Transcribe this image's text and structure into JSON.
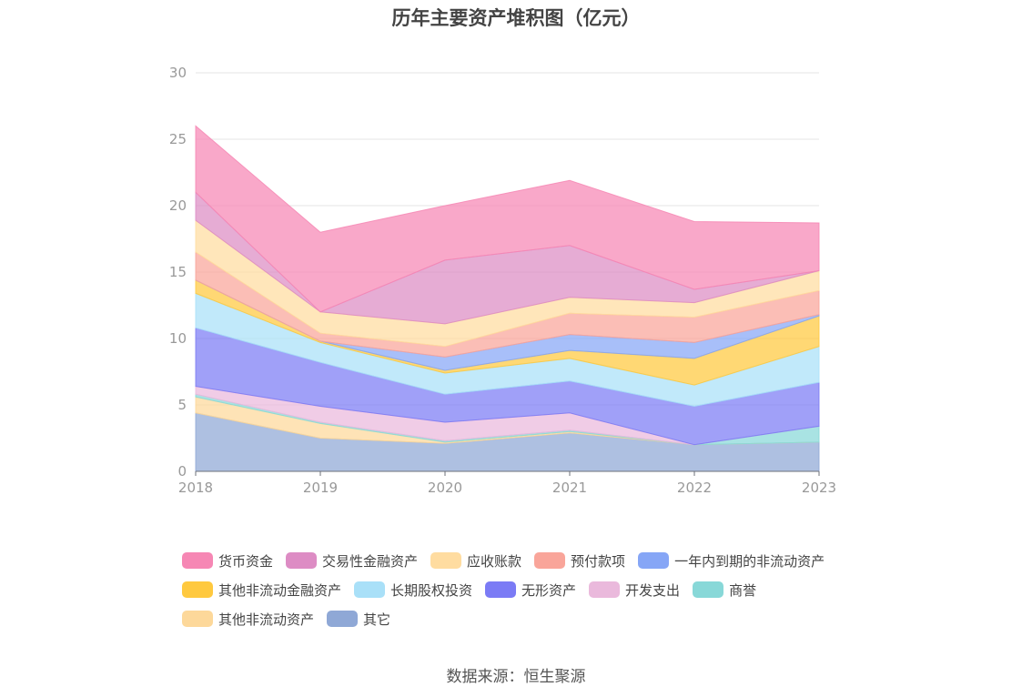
{
  "chart_data": {
    "type": "area",
    "title": "历年主要资产堆积图（亿元）",
    "x": [
      "2018",
      "2019",
      "2020",
      "2021",
      "2022",
      "2023"
    ],
    "ylim": [
      0,
      30
    ],
    "yticks": [
      0,
      5,
      10,
      15,
      20,
      25,
      30
    ],
    "grid": true,
    "legend_position": "bottom",
    "series": [
      {
        "name": "其它",
        "color": "#8fa8d6",
        "values": [
          4.4,
          2.5,
          2.1,
          2.9,
          2.0,
          2.2
        ]
      },
      {
        "name": "其他非流动资产",
        "color": "#fdd89a",
        "values": [
          1.2,
          1.1,
          0.1,
          0.1,
          0.0,
          0.0
        ]
      },
      {
        "name": "商誉",
        "color": "#88d8d8",
        "values": [
          0.2,
          0.1,
          0.1,
          0.1,
          0.0,
          1.2
        ]
      },
      {
        "name": "开发支出",
        "color": "#eab9dc",
        "values": [
          0.6,
          1.2,
          1.4,
          1.3,
          0.0,
          0.0
        ]
      },
      {
        "name": "无形资产",
        "color": "#7b7bf5",
        "values": [
          4.4,
          3.3,
          2.1,
          2.4,
          2.9,
          3.3
        ]
      },
      {
        "name": "长期股权投资",
        "color": "#a9e0f8",
        "values": [
          2.6,
          1.5,
          1.6,
          1.7,
          1.6,
          2.7
        ]
      },
      {
        "name": "其他非流动金融资产",
        "color": "#ffc93f",
        "values": [
          1.0,
          0.1,
          0.2,
          0.6,
          2.0,
          2.3
        ]
      },
      {
        "name": "一年内到期的非流动资产",
        "color": "#86a6f6",
        "values": [
          0.0,
          0.0,
          1.0,
          1.2,
          1.2,
          0.1
        ]
      },
      {
        "name": "预付款项",
        "color": "#f9a59a",
        "values": [
          2.1,
          0.6,
          0.8,
          1.6,
          1.9,
          1.8
        ]
      },
      {
        "name": "应收账款",
        "color": "#ffdca0",
        "values": [
          2.4,
          1.6,
          1.7,
          1.2,
          1.1,
          1.5
        ]
      },
      {
        "name": "交易性金融资产",
        "color": "#dd8cc4",
        "values": [
          2.1,
          0.0,
          4.8,
          3.9,
          1.0,
          0.0
        ]
      },
      {
        "name": "货币资金",
        "color": "#f687b4",
        "values": [
          5.0,
          6.0,
          4.1,
          4.9,
          5.1,
          3.6
        ]
      }
    ],
    "legend_order": [
      "货币资金",
      "交易性金融资产",
      "应收账款",
      "预付款项",
      "一年内到期的非流动资产",
      "其他非流动金融资产",
      "长期股权投资",
      "无形资产",
      "开发支出",
      "商誉",
      "其他非流动资产",
      "其它"
    ]
  },
  "legend_rows": [
    [
      {
        "label": "货币资金",
        "color": "#f687b4"
      },
      {
        "label": "交易性金融资产",
        "color": "#dd8cc4"
      },
      {
        "label": "应收账款",
        "color": "#ffdca0"
      },
      {
        "label": "预付款项",
        "color": "#f9a59a"
      },
      {
        "label": "一年内到期的非流动资产",
        "color": "#86a6f6"
      }
    ],
    [
      {
        "label": "其他非流动金融资产",
        "color": "#ffc93f"
      },
      {
        "label": "长期股权投资",
        "color": "#a9e0f8"
      },
      {
        "label": "无形资产",
        "color": "#7b7bf5"
      },
      {
        "label": "开发支出",
        "color": "#eab9dc"
      },
      {
        "label": "商誉",
        "color": "#88d8d8"
      }
    ],
    [
      {
        "label": "其他非流动资产",
        "color": "#fdd89a"
      },
      {
        "label": "其它",
        "color": "#8fa8d6"
      }
    ]
  ],
  "source": "数据来源：恒生聚源"
}
